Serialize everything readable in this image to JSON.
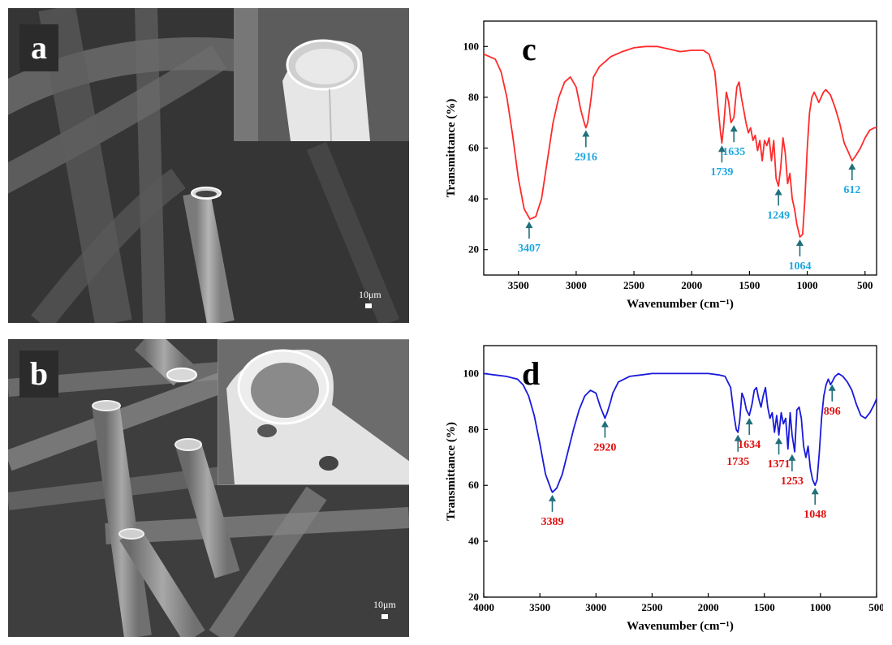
{
  "panels": {
    "a": {
      "label": "a",
      "scale_label": "10μm"
    },
    "b": {
      "label": "b",
      "scale_label": "10μm"
    }
  },
  "chart_data": [
    {
      "type": "line",
      "panel_label": "c",
      "xlabel": "Wavenumber (cm⁻¹)",
      "ylabel": "Transmittance (%)",
      "xlim": [
        3800,
        400
      ],
      "ylim": [
        10,
        110
      ],
      "x_reversed": true,
      "xticks": [
        3500,
        3000,
        2500,
        2000,
        1500,
        1000,
        500
      ],
      "yticks": [
        20,
        40,
        60,
        80,
        100
      ],
      "line_color": "#ff2a2a",
      "annotation_color": "#1ea7e1",
      "series": [
        {
          "x": [
            3800,
            3700,
            3650,
            3600,
            3550,
            3500,
            3450,
            3400,
            3350,
            3300,
            3250,
            3200,
            3150,
            3100,
            3050,
            3000,
            2960,
            2930,
            2916,
            2900,
            2870,
            2850,
            2800,
            2700,
            2600,
            2500,
            2400,
            2300,
            2200,
            2100,
            2000,
            1900,
            1850,
            1800,
            1770,
            1750,
            1739,
            1725,
            1700,
            1680,
            1660,
            1635,
            1610,
            1590,
            1570,
            1550,
            1530,
            1510,
            1490,
            1470,
            1450,
            1430,
            1410,
            1390,
            1370,
            1350,
            1330,
            1310,
            1290,
            1270,
            1249,
            1230,
            1210,
            1190,
            1170,
            1150,
            1130,
            1110,
            1090,
            1064,
            1040,
            1020,
            1000,
            980,
            960,
            940,
            920,
            900,
            880,
            860,
            840,
            800,
            760,
            720,
            680,
            640,
            612,
            580,
            540,
            500,
            460,
            420,
            400
          ],
          "y": [
            97,
            95,
            90,
            80,
            65,
            48,
            36,
            32,
            33,
            40,
            55,
            70,
            80,
            86,
            88,
            84,
            75,
            70,
            68,
            70,
            80,
            88,
            92,
            96,
            98,
            99.5,
            100,
            100,
            99,
            98,
            98.5,
            98.5,
            97,
            90,
            75,
            66,
            62,
            68,
            82,
            78,
            70,
            72,
            84,
            86,
            80,
            75,
            70,
            66,
            68,
            63,
            65,
            59,
            63,
            55,
            63,
            61,
            64,
            55,
            63,
            48,
            45,
            52,
            64,
            58,
            46,
            50,
            40,
            36,
            30,
            25,
            26,
            40,
            60,
            74,
            80,
            82,
            80,
            78,
            80,
            82,
            83,
            81,
            76,
            70,
            62,
            58,
            55,
            57,
            60,
            64,
            67,
            68,
            68
          ]
        }
      ],
      "annotations": [
        {
          "label": "3407",
          "x": 3407,
          "y": 32
        },
        {
          "label": "2916",
          "x": 2916,
          "y": 68
        },
        {
          "label": "1739",
          "x": 1739,
          "y": 62
        },
        {
          "label": "1635",
          "x": 1635,
          "y": 70
        },
        {
          "label": "1249",
          "x": 1249,
          "y": 45
        },
        {
          "label": "1064",
          "x": 1064,
          "y": 25
        },
        {
          "label": "612",
          "x": 612,
          "y": 55
        }
      ]
    },
    {
      "type": "line",
      "panel_label": "d",
      "xlabel": "Wavenumber (cm⁻¹)",
      "ylabel": "Transmittance (%)",
      "xlim": [
        4000,
        500
      ],
      "ylim": [
        20,
        110
      ],
      "x_reversed": true,
      "xticks": [
        4000,
        3500,
        3000,
        2500,
        2000,
        1500,
        1000,
        500
      ],
      "yticks": [
        20,
        40,
        60,
        80,
        100
      ],
      "line_color": "#1a1adb",
      "annotation_color": "#e01010",
      "series": [
        {
          "x": [
            4000,
            3900,
            3800,
            3700,
            3650,
            3600,
            3550,
            3500,
            3450,
            3400,
            3389,
            3350,
            3300,
            3250,
            3200,
            3150,
            3100,
            3050,
            3000,
            2960,
            2930,
            2920,
            2900,
            2870,
            2850,
            2800,
            2700,
            2600,
            2500,
            2400,
            2300,
            2200,
            2100,
            2000,
            1900,
            1850,
            1800,
            1770,
            1750,
            1735,
            1720,
            1700,
            1680,
            1660,
            1634,
            1610,
            1590,
            1570,
            1550,
            1530,
            1510,
            1490,
            1470,
            1450,
            1430,
            1410,
            1390,
            1371,
            1350,
            1330,
            1310,
            1290,
            1270,
            1253,
            1230,
            1210,
            1190,
            1170,
            1150,
            1130,
            1110,
            1090,
            1070,
            1048,
            1030,
            1010,
            990,
            970,
            950,
            930,
            910,
            896,
            870,
            840,
            800,
            760,
            720,
            680,
            640,
            600,
            560,
            520,
            500
          ],
          "y": [
            100,
            99.5,
            99,
            98,
            96,
            92,
            85,
            75,
            64,
            58.5,
            57.5,
            59,
            64,
            72,
            80,
            87,
            92,
            94,
            93,
            88,
            85,
            84,
            86,
            90,
            93,
            97,
            99,
            99.5,
            100,
            100,
            100,
            100,
            100,
            100,
            99.5,
            99,
            95,
            85,
            80,
            79,
            83,
            93,
            91,
            87,
            85,
            89,
            94,
            95,
            91,
            88,
            92,
            95,
            88,
            84,
            86,
            79,
            85,
            78,
            86,
            82,
            84,
            73,
            86,
            78,
            72,
            87,
            88,
            84,
            74,
            70,
            74,
            66,
            62,
            60,
            62,
            72,
            84,
            92,
            96,
            98,
            96,
            97,
            99,
            100,
            99,
            97,
            94,
            89,
            85,
            84,
            86,
            89,
            91
          ]
        }
      ],
      "annotations": [
        {
          "label": "3389",
          "x": 3389,
          "y": 57.5
        },
        {
          "label": "2920",
          "x": 2920,
          "y": 84
        },
        {
          "label": "1735",
          "x": 1735,
          "y": 79
        },
        {
          "label": "1634",
          "x": 1634,
          "y": 85
        },
        {
          "label": "1371",
          "x": 1371,
          "y": 78
        },
        {
          "label": "1253",
          "x": 1253,
          "y": 72
        },
        {
          "label": "1048",
          "x": 1048,
          "y": 60
        },
        {
          "label": "896",
          "x": 896,
          "y": 97
        }
      ]
    }
  ]
}
